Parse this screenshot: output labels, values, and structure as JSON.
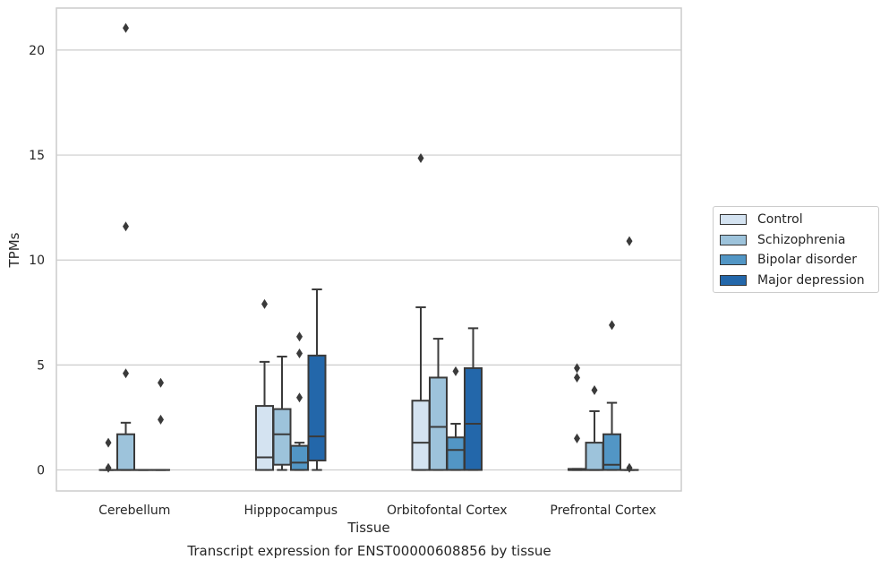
{
  "chart_data": {
    "type": "box",
    "caption": "Transcript expression for ENST00000608856 by tissue",
    "xlabel": "Tissue",
    "ylabel": "TPMs",
    "ylim": [
      -1.0,
      22.0
    ],
    "yticks": [
      0,
      5,
      10,
      15,
      20
    ],
    "grid": "horizontal",
    "legend_position": "right",
    "categories": [
      "Cerebellum",
      "Hipppocampus",
      "Orbitofontal Cortex",
      "Prefrontal Cortex"
    ],
    "series": [
      {
        "name": "Control",
        "color": "#d4e3f1",
        "boxes": [
          {
            "whislo": 0,
            "q1": 0,
            "med": 0,
            "q3": 0,
            "whishi": 0,
            "fliers": [
              0.1,
              1.3
            ]
          },
          {
            "whislo": 0,
            "q1": 0,
            "med": 0.6,
            "q3": 3.05,
            "whishi": 5.15,
            "fliers": [
              7.9
            ]
          },
          {
            "whislo": 0,
            "q1": 0,
            "med": 1.3,
            "q3": 3.3,
            "whishi": 7.75,
            "fliers": [
              14.85
            ]
          },
          {
            "whislo": 0,
            "q1": 0,
            "med": 0,
            "q3": 0.05,
            "whishi": 0.05,
            "fliers": [
              1.5,
              4.4,
              4.85
            ]
          }
        ]
      },
      {
        "name": "Schizophrenia",
        "color": "#9dc3db",
        "boxes": [
          {
            "whislo": 0,
            "q1": 0,
            "med": 0,
            "q3": 1.7,
            "whishi": 2.25,
            "fliers": [
              4.6,
              11.6,
              21.05
            ]
          },
          {
            "whislo": 0,
            "q1": 0.25,
            "med": 1.7,
            "q3": 2.9,
            "whishi": 5.4,
            "fliers": []
          },
          {
            "whislo": 0,
            "q1": 0,
            "med": 2.05,
            "q3": 4.4,
            "whishi": 6.25,
            "fliers": []
          },
          {
            "whislo": 0,
            "q1": 0,
            "med": 0,
            "q3": 1.3,
            "whishi": 2.8,
            "fliers": [
              3.8
            ]
          }
        ]
      },
      {
        "name": "Bipolar disorder",
        "color": "#5296c5",
        "boxes": [
          {
            "whislo": 0,
            "q1": 0,
            "med": 0,
            "q3": 0,
            "whishi": 0,
            "fliers": []
          },
          {
            "whislo": 0,
            "q1": 0,
            "med": 0.35,
            "q3": 1.15,
            "whishi": 1.3,
            "fliers": [
              3.45,
              5.55,
              6.35
            ]
          },
          {
            "whislo": 0,
            "q1": 0,
            "med": 0.95,
            "q3": 1.55,
            "whishi": 2.2,
            "fliers": [
              4.7
            ]
          },
          {
            "whislo": 0,
            "q1": 0,
            "med": 0.25,
            "q3": 1.7,
            "whishi": 3.2,
            "fliers": [
              6.9
            ]
          }
        ]
      },
      {
        "name": "Major depression",
        "color": "#2367aa",
        "boxes": [
          {
            "whislo": 0,
            "q1": 0,
            "med": 0,
            "q3": 0,
            "whishi": 0,
            "fliers": [
              2.4,
              4.15
            ]
          },
          {
            "whislo": 0,
            "q1": 0.45,
            "med": 1.6,
            "q3": 5.45,
            "whishi": 8.6,
            "fliers": []
          },
          {
            "whislo": 0,
            "q1": 0,
            "med": 2.2,
            "q3": 4.85,
            "whishi": 6.75,
            "fliers": []
          },
          {
            "whislo": 0,
            "q1": 0,
            "med": 0,
            "q3": 0,
            "whishi": 0,
            "fliers": [
              0.1,
              10.9
            ]
          }
        ]
      }
    ]
  }
}
